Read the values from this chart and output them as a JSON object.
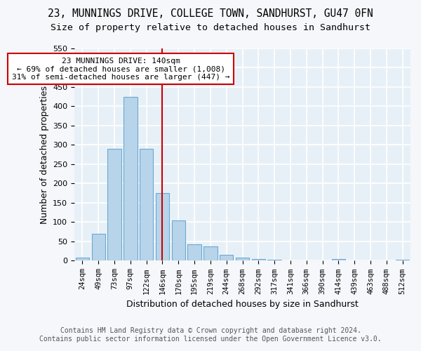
{
  "title_line1": "23, MUNNINGS DRIVE, COLLEGE TOWN, SANDHURST, GU47 0FN",
  "title_line2": "Size of property relative to detached houses in Sandhurst",
  "xlabel": "Distribution of detached houses by size in Sandhurst",
  "ylabel": "Number of detached properties",
  "categories": [
    "24sqm",
    "49sqm",
    "73sqm",
    "97sqm",
    "122sqm",
    "146sqm",
    "170sqm",
    "195sqm",
    "219sqm",
    "244sqm",
    "268sqm",
    "292sqm",
    "317sqm",
    "341sqm",
    "366sqm",
    "390sqm",
    "414sqm",
    "439sqm",
    "463sqm",
    "488sqm",
    "512sqm"
  ],
  "values": [
    8,
    70,
    290,
    425,
    290,
    175,
    105,
    43,
    37,
    16,
    8,
    5,
    3,
    1,
    0,
    0,
    4,
    0,
    0,
    0,
    3
  ],
  "bar_color": "#b8d4ea",
  "bar_edge_color": "#6aaad4",
  "vline_x_index": 5,
  "vline_color": "#cc0000",
  "annotation_line1": "23 MUNNINGS DRIVE: 140sqm",
  "annotation_line2": "← 69% of detached houses are smaller (1,008)",
  "annotation_line3": "31% of semi-detached houses are larger (447) →",
  "ylim_max": 550,
  "yticks": [
    0,
    50,
    100,
    150,
    200,
    250,
    300,
    350,
    400,
    450,
    500,
    550
  ],
  "footnote_line1": "Contains HM Land Registry data © Crown copyright and database right 2024.",
  "footnote_line2": "Contains public sector information licensed under the Open Government Licence v3.0.",
  "plot_bg": "#e8f0f7",
  "fig_bg": "#f5f7fa",
  "grid_color": "#ffffff"
}
